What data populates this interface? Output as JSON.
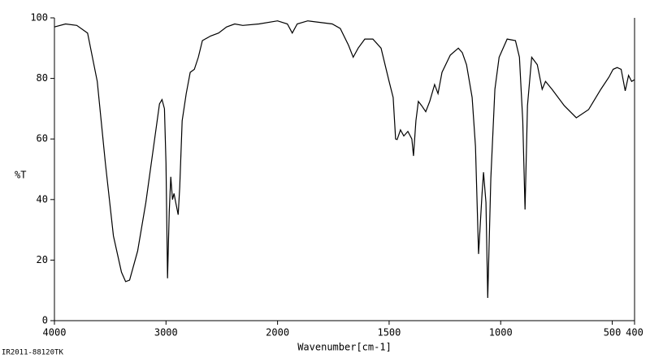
{
  "chart_data": {
    "type": "line",
    "xlabel": "Wavenumber[cm-1]",
    "ylabel": "%T",
    "footnote": "IR2011-88120TK",
    "xlim": [
      4000,
      400
    ],
    "xbreak": 2000,
    "xticks": [
      4000,
      3000,
      2000,
      1500,
      1000,
      500,
      400
    ],
    "ylim": [
      0,
      100
    ],
    "yticks": [
      0,
      20,
      40,
      60,
      80,
      100
    ],
    "color": "#000000",
    "x": [
      4000,
      3900,
      3800,
      3703,
      3616,
      3543,
      3471,
      3399,
      3362,
      3326,
      3254,
      3181,
      3109,
      3058,
      3036,
      3014,
      3000,
      2986,
      2971,
      2957,
      2942,
      2928,
      2913,
      2891,
      2877,
      2855,
      2819,
      2783,
      2746,
      2710,
      2674,
      2601,
      2529,
      2457,
      2384,
      2312,
      2167,
      2000,
      1956,
      1934,
      1912,
      1865,
      1755,
      1719,
      1682,
      1661,
      1639,
      1609,
      1573,
      1536,
      1500,
      1482,
      1471,
      1464,
      1449,
      1434,
      1416,
      1398,
      1391,
      1380,
      1369,
      1354,
      1336,
      1318,
      1296,
      1281,
      1263,
      1226,
      1190,
      1172,
      1153,
      1128,
      1113,
      1099,
      1084,
      1077,
      1066,
      1058,
      1044,
      1026,
      1007,
      971,
      934,
      916,
      901,
      891,
      880,
      861,
      836,
      814,
      799,
      770,
      715,
      661,
      606,
      551,
      515,
      496,
      478,
      460,
      442,
      427,
      413,
      400
    ],
    "values": [
      97,
      98,
      97.5,
      95,
      79,
      52,
      28,
      16,
      12.9,
      13.4,
      23,
      39,
      58,
      71.6,
      73,
      70,
      52,
      14,
      36,
      47.5,
      40,
      42,
      39,
      35,
      44,
      66,
      75,
      82,
      83,
      87,
      92.5,
      94,
      95,
      97,
      98,
      97.5,
      98,
      99,
      98,
      95,
      98,
      99,
      98,
      96.5,
      91,
      87,
      90,
      93,
      93,
      90,
      79,
      73.7,
      60,
      59.8,
      63,
      61,
      62.5,
      60,
      54.4,
      66,
      72.4,
      71,
      69,
      72.4,
      78,
      75,
      82,
      87.7,
      90,
      88.5,
      84.5,
      73.7,
      57.6,
      22,
      41.5,
      49,
      39,
      7.5,
      47,
      76.4,
      87,
      93,
      92.5,
      87,
      66,
      36.7,
      71,
      87,
      84.5,
      76.4,
      79,
      76.4,
      71,
      67,
      69.7,
      76.4,
      80.4,
      83,
      83.6,
      83,
      75.9,
      81,
      79,
      79.6
    ]
  }
}
